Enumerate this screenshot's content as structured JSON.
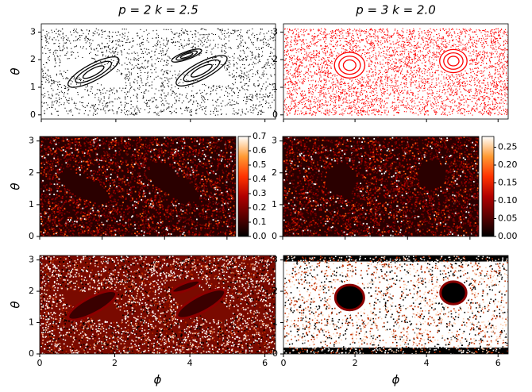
{
  "chart_data": [
    {
      "type": "scatter",
      "title": "p = 2   k = 2.5",
      "ylabel": "θ",
      "color": "#000000",
      "xlim": [
        0,
        6.2832
      ],
      "ylim": [
        -0.15,
        3.3
      ],
      "xticks": [
        0,
        2,
        4,
        6
      ],
      "yticks": [
        0,
        1,
        2,
        3
      ],
      "show_xtick_labels": false
    },
    {
      "type": "scatter",
      "title": "p = 3   k = 2.0",
      "color": "#ff0000",
      "xlim": [
        0,
        6.2832
      ],
      "ylim": [
        -0.15,
        3.3
      ],
      "xticks": [
        0,
        2,
        4,
        6
      ],
      "yticks": [
        0,
        1,
        2,
        3
      ],
      "show_xtick_labels": false
    },
    {
      "type": "heatmap",
      "ylabel": "θ",
      "colormap": "gist_heat",
      "xlim": [
        0,
        6.2832
      ],
      "ylim": [
        0,
        3.1416
      ],
      "xticks": [
        0,
        2,
        4,
        6
      ],
      "yticks": [
        0,
        1,
        2,
        3
      ],
      "show_xtick_labels": false,
      "clim": [
        0,
        0.7
      ],
      "cticks": [
        {
          "value": 0,
          "label": "0.0"
        },
        0.1,
        0.2,
        0.3,
        0.4,
        0.5,
        0.6,
        0.7
      ]
    },
    {
      "type": "heatmap",
      "colormap": "gist_heat",
      "xlim": [
        0,
        6.2832
      ],
      "ylim": [
        0,
        3.1416
      ],
      "xticks": [
        0,
        2,
        4,
        6
      ],
      "yticks": [
        0,
        1,
        2,
        3
      ],
      "show_xtick_labels": false,
      "clim": [
        0,
        0.28
      ],
      "cticks": [
        {
          "value": 0,
          "label": "0.00"
        },
        0.05,
        {
          "value": 0.1,
          "label": "0.10"
        },
        0.15,
        {
          "value": 0.2,
          "label": "0.20"
        },
        0.25
      ]
    },
    {
      "type": "density",
      "ylabel": "θ",
      "xlabel": "ϕ",
      "xlim": [
        0,
        6.2832
      ],
      "ylim": [
        0,
        3.1416
      ],
      "xticks": [
        0,
        2,
        4,
        6
      ],
      "yticks": [
        0,
        1,
        2,
        3
      ],
      "show_xtick_labels": true
    },
    {
      "type": "density",
      "xlabel": "ϕ",
      "xlim": [
        0,
        6.2832
      ],
      "ylim": [
        0,
        3.1416
      ],
      "xticks": [
        0,
        2,
        4,
        6
      ],
      "yticks": [
        0,
        1,
        2,
        3
      ],
      "show_xtick_labels": true
    }
  ]
}
